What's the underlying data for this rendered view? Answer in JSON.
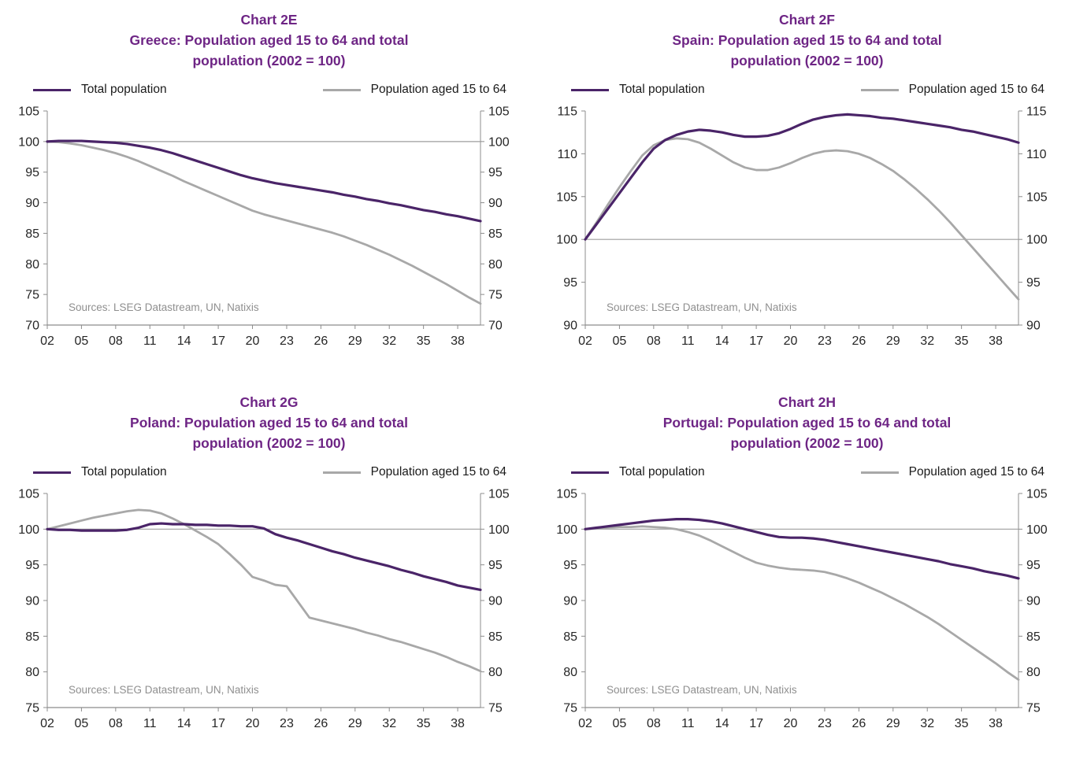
{
  "colors": {
    "title": "#6E2585",
    "purple": "#4A2468",
    "gray": "#A8A8A8",
    "axis": "#8C8C8C",
    "ref_line": "#9E9E9E",
    "tick_label": "#262626",
    "sources": "#8F8F8F"
  },
  "chart_data": [
    {
      "name": "chart-2e",
      "type": "line",
      "title_line1": "Chart 2E",
      "title_line2": "Greece: Population aged 15 to 64 and total",
      "title_line3": "population (2002 = 100)",
      "sources": "Sources: LSEG Datastream, UN, Natixis",
      "legend_position": "top",
      "x_start": 2002,
      "x_end": 2040,
      "x_tick_years": [
        2002,
        2005,
        2008,
        2011,
        2014,
        2017,
        2020,
        2023,
        2026,
        2029,
        2032,
        2035,
        2038
      ],
      "x_tick_labels": [
        "02",
        "05",
        "08",
        "11",
        "14",
        "17",
        "20",
        "23",
        "26",
        "29",
        "32",
        "35",
        "38"
      ],
      "ylim": [
        70,
        105
      ],
      "ystep": 5,
      "ref_line": 100,
      "series": [
        {
          "name": "Total population",
          "color_key": "purple",
          "values": [
            100.0,
            100.1,
            100.1,
            100.1,
            100.0,
            99.9,
            99.8,
            99.6,
            99.3,
            99.0,
            98.6,
            98.1,
            97.5,
            96.9,
            96.3,
            95.7,
            95.1,
            94.5,
            94.0,
            93.6,
            93.2,
            92.9,
            92.6,
            92.3,
            92.0,
            91.7,
            91.3,
            91.0,
            90.6,
            90.3,
            89.9,
            89.6,
            89.2,
            88.8,
            88.5,
            88.1,
            87.8,
            87.4,
            87.0
          ]
        },
        {
          "name": "Population aged 15 to 64",
          "color_key": "gray",
          "values": [
            100.0,
            99.9,
            99.7,
            99.4,
            99.0,
            98.6,
            98.1,
            97.5,
            96.8,
            96.0,
            95.2,
            94.4,
            93.5,
            92.7,
            91.9,
            91.1,
            90.3,
            89.5,
            88.7,
            88.1,
            87.6,
            87.1,
            86.6,
            86.1,
            85.6,
            85.1,
            84.5,
            83.8,
            83.1,
            82.3,
            81.5,
            80.6,
            79.7,
            78.7,
            77.7,
            76.7,
            75.6,
            74.5,
            73.5
          ]
        }
      ]
    },
    {
      "name": "chart-2f",
      "type": "line",
      "title_line1": "Chart 2F",
      "title_line2": "Spain: Population aged 15 to 64 and total",
      "title_line3": "population (2002 = 100)",
      "sources": "Sources: LSEG Datastream, UN, Natixis",
      "legend_position": "top",
      "x_start": 2002,
      "x_end": 2040,
      "x_tick_years": [
        2002,
        2005,
        2008,
        2011,
        2014,
        2017,
        2020,
        2023,
        2026,
        2029,
        2032,
        2035,
        2038
      ],
      "x_tick_labels": [
        "02",
        "05",
        "08",
        "11",
        "14",
        "17",
        "20",
        "23",
        "26",
        "29",
        "32",
        "35",
        "38"
      ],
      "ylim": [
        90,
        115
      ],
      "ystep": 5,
      "ref_line": 100,
      "series": [
        {
          "name": "Total population",
          "color_key": "purple",
          "values": [
            100.0,
            101.8,
            103.6,
            105.4,
            107.2,
            109.0,
            110.6,
            111.6,
            112.2,
            112.6,
            112.8,
            112.7,
            112.5,
            112.2,
            112.0,
            112.0,
            112.1,
            112.4,
            112.9,
            113.5,
            114.0,
            114.3,
            114.5,
            114.6,
            114.5,
            114.4,
            114.2,
            114.1,
            113.9,
            113.7,
            113.5,
            113.3,
            113.1,
            112.8,
            112.6,
            112.3,
            112.0,
            111.7,
            111.3
          ]
        },
        {
          "name": "Population aged 15 to 64",
          "color_key": "gray",
          "values": [
            100.0,
            102.0,
            104.1,
            106.1,
            108.0,
            109.8,
            111.0,
            111.6,
            111.8,
            111.7,
            111.3,
            110.6,
            109.8,
            109.0,
            108.4,
            108.1,
            108.1,
            108.4,
            108.9,
            109.5,
            110.0,
            110.3,
            110.4,
            110.3,
            110.0,
            109.5,
            108.8,
            108.0,
            107.0,
            105.9,
            104.7,
            103.4,
            102.0,
            100.5,
            99.0,
            97.5,
            96.0,
            94.5,
            93.0
          ]
        }
      ]
    },
    {
      "name": "chart-2g",
      "type": "line",
      "title_line1": "Chart 2G",
      "title_line2": "Poland: Population aged 15 to 64 and total",
      "title_line3": "population (2002 = 100)",
      "sources": "Sources: LSEG Datastream, UN, Natixis",
      "legend_position": "top",
      "x_start": 2002,
      "x_end": 2040,
      "x_tick_years": [
        2002,
        2005,
        2008,
        2011,
        2014,
        2017,
        2020,
        2023,
        2026,
        2029,
        2032,
        2035,
        2038
      ],
      "x_tick_labels": [
        "02",
        "05",
        "08",
        "11",
        "14",
        "17",
        "20",
        "23",
        "26",
        "29",
        "32",
        "35",
        "38"
      ],
      "ylim": [
        75,
        105
      ],
      "ystep": 5,
      "ref_line": 100,
      "series": [
        {
          "name": "Total population",
          "color_key": "purple",
          "values": [
            100.0,
            99.9,
            99.9,
            99.8,
            99.8,
            99.8,
            99.8,
            99.9,
            100.2,
            100.7,
            100.8,
            100.7,
            100.7,
            100.6,
            100.6,
            100.5,
            100.5,
            100.4,
            100.4,
            100.1,
            99.3,
            98.8,
            98.4,
            97.9,
            97.4,
            96.9,
            96.5,
            96.0,
            95.6,
            95.2,
            94.8,
            94.3,
            93.9,
            93.4,
            93.0,
            92.6,
            92.1,
            91.8,
            91.5
          ]
        },
        {
          "name": "Population aged 15 to 64",
          "color_key": "gray",
          "values": [
            100.0,
            100.4,
            100.8,
            101.2,
            101.6,
            101.9,
            102.2,
            102.5,
            102.7,
            102.6,
            102.2,
            101.5,
            100.7,
            99.8,
            98.9,
            97.9,
            96.5,
            95.0,
            93.3,
            92.8,
            92.2,
            92.0,
            89.8,
            87.6,
            87.2,
            86.8,
            86.4,
            86.0,
            85.5,
            85.1,
            84.6,
            84.2,
            83.7,
            83.2,
            82.7,
            82.1,
            81.4,
            80.8,
            80.1
          ]
        }
      ]
    },
    {
      "name": "chart-2h",
      "type": "line",
      "title_line1": "Chart 2H",
      "title_line2": "Portugal: Population aged 15 to 64 and total",
      "title_line3": "population (2002 = 100)",
      "sources": "Sources: LSEG Datastream, UN, Natixis",
      "legend_position": "top",
      "x_start": 2002,
      "x_end": 2040,
      "x_tick_years": [
        2002,
        2005,
        2008,
        2011,
        2014,
        2017,
        2020,
        2023,
        2026,
        2029,
        2032,
        2035,
        2038
      ],
      "x_tick_labels": [
        "02",
        "05",
        "08",
        "11",
        "14",
        "17",
        "20",
        "23",
        "26",
        "29",
        "32",
        "35",
        "38"
      ],
      "ylim": [
        75,
        105
      ],
      "ystep": 5,
      "ref_line": 100,
      "series": [
        {
          "name": "Total population",
          "color_key": "purple",
          "values": [
            100.0,
            100.2,
            100.4,
            100.6,
            100.8,
            101.0,
            101.2,
            101.3,
            101.4,
            101.4,
            101.3,
            101.1,
            100.8,
            100.4,
            100.0,
            99.6,
            99.2,
            98.9,
            98.8,
            98.8,
            98.7,
            98.5,
            98.2,
            97.9,
            97.6,
            97.3,
            97.0,
            96.7,
            96.4,
            96.1,
            95.8,
            95.5,
            95.1,
            94.8,
            94.5,
            94.1,
            93.8,
            93.5,
            93.1
          ]
        },
        {
          "name": "Population aged 15 to 64",
          "color_key": "gray",
          "values": [
            100.0,
            100.1,
            100.2,
            100.3,
            100.3,
            100.4,
            100.3,
            100.2,
            100.0,
            99.6,
            99.1,
            98.4,
            97.6,
            96.8,
            96.0,
            95.3,
            94.9,
            94.6,
            94.4,
            94.3,
            94.2,
            94.0,
            93.6,
            93.1,
            92.5,
            91.8,
            91.1,
            90.3,
            89.5,
            88.6,
            87.7,
            86.7,
            85.6,
            84.5,
            83.4,
            82.3,
            81.2,
            80.0,
            78.9
          ]
        }
      ]
    }
  ]
}
